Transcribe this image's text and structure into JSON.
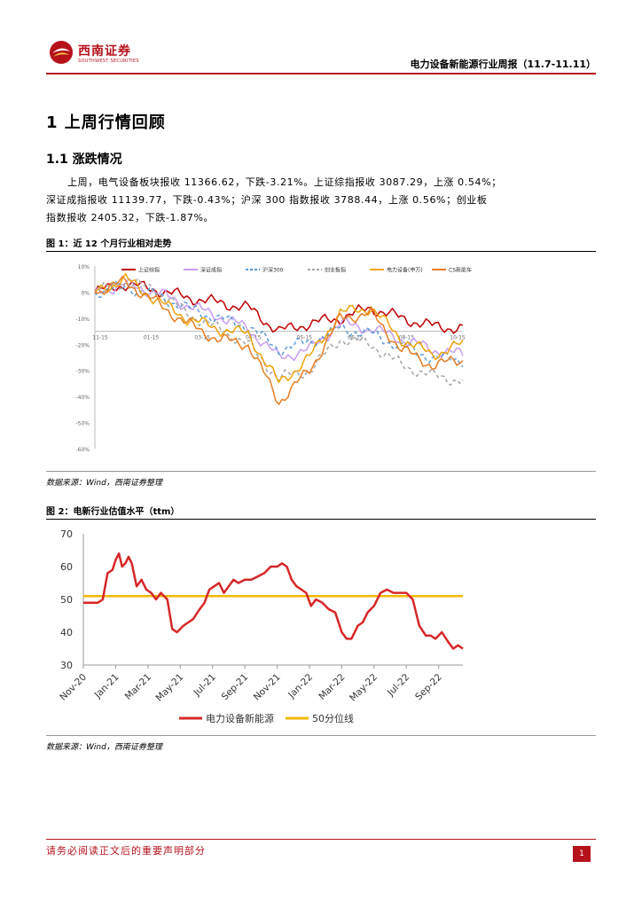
{
  "header": {
    "logo_cn": "西南证券",
    "logo_en": "SOUTHWEST SECURITIES",
    "report_title": "电力设备新能源行业周报（11.7-11.11）",
    "brand_color": "#b5121b"
  },
  "section": {
    "h1": "1  上周行情回顾",
    "h2": "1.1 涨跌情况",
    "paragraph_lines": [
      "上周，电气设备板块报收 11366.62，下跌-3.21%。上证综指报收 3087.29，上涨 0.54%；",
      "深证成指报收 11139.77，下跌-0.43%；沪深 300 指数报收 3788.44，上涨 0.56%；创业板",
      "指数报收 2405.32，下跌-1.87%。"
    ]
  },
  "figure1": {
    "title": "图 1：近 12 个月行业相对走势",
    "source": "数据来源：Wind，西南证券整理"
  },
  "figure2": {
    "title": "图 2：电新行业估值水平（ttm）",
    "source": "数据来源：Wind，西南证券整理"
  },
  "footer": {
    "disclaimer": "请务必阅读正文后的重要声明部分",
    "page_number": "1"
  },
  "chart_data": [
    {
      "type": "line",
      "title": "近 12 个月行业相对走势",
      "ylim": [
        -60,
        10
      ],
      "y_ticks": [
        "10%",
        "0%",
        "-10%",
        "-20%",
        "-30%",
        "-40%",
        "-50%",
        "-60%"
      ],
      "x_ticks": [
        "11-15",
        "01-15",
        "03-15",
        "04-15",
        "05-15",
        "06-15",
        "08-15",
        "10-15"
      ],
      "legend": [
        "上证综指",
        "深证成指",
        "沪深300",
        "创业板指",
        "电力设备(申万)",
        "CS新能车"
      ],
      "colors": [
        "#c00000",
        "#c79cf2",
        "#5b9bd5",
        "#a6a6a6",
        "#f0a30a",
        "#e67e22"
      ],
      "dashed": [
        false,
        false,
        true,
        true,
        false,
        false
      ],
      "x": [
        0,
        1,
        2,
        3,
        4,
        5,
        6,
        7,
        8,
        9,
        10,
        11,
        12
      ],
      "series": [
        {
          "name": "上证综指",
          "values": [
            0,
            3,
            1,
            -2,
            -4,
            -6,
            -15,
            -12,
            -10,
            -6,
            -10,
            -13,
            -14
          ]
        },
        {
          "name": "深证成指",
          "values": [
            0,
            3,
            0,
            -5,
            -9,
            -14,
            -25,
            -22,
            -12,
            -14,
            -18,
            -22,
            -24
          ]
        },
        {
          "name": "沪深300",
          "values": [
            0,
            2,
            -1,
            -6,
            -10,
            -13,
            -22,
            -19,
            -14,
            -16,
            -21,
            -25,
            -26
          ]
        },
        {
          "name": "创业板指",
          "values": [
            0,
            4,
            1,
            -8,
            -14,
            -20,
            -33,
            -30,
            -18,
            -20,
            -28,
            -32,
            -34
          ]
        },
        {
          "name": "电力设备(申万)",
          "values": [
            0,
            5,
            -3,
            -10,
            -14,
            -16,
            -35,
            -25,
            -8,
            -6,
            -18,
            -24,
            -20
          ]
        },
        {
          "name": "CS新能车",
          "values": [
            0,
            4,
            -4,
            -12,
            -18,
            -20,
            -42,
            -30,
            -10,
            -8,
            -22,
            -28,
            -26
          ]
        }
      ]
    },
    {
      "type": "line",
      "title": "电新行业估值水平（ttm）",
      "ylim": [
        30,
        70
      ],
      "y_ticks": [
        "70",
        "60",
        "50",
        "40",
        "30"
      ],
      "x_ticks": [
        "Nov-20",
        "Jan-21",
        "Mar-21",
        "May-21",
        "Jul-21",
        "Sep-21",
        "Nov-21",
        "Jan-22",
        "Mar-22",
        "May-22",
        "Jul-22",
        "Sep-22"
      ],
      "x_month_index": [
        0,
        2,
        4,
        6,
        8,
        10,
        12,
        14,
        16,
        18,
        20,
        22
      ],
      "legend": [
        "电力设备新能源",
        "50分位线"
      ],
      "colors": [
        "#d62728",
        "#f5b800"
      ],
      "series": [
        {
          "name": "电力设备新能源",
          "x": [
            0,
            0.5,
            0.9,
            1.2,
            1.5,
            1.8,
            2.0,
            2.2,
            2.4,
            2.6,
            2.8,
            3.0,
            3.3,
            3.6,
            3.9,
            4.2,
            4.5,
            4.8,
            5.2,
            5.5,
            5.8,
            6.0,
            6.2,
            6.5,
            6.8,
            7.2,
            7.5,
            7.8,
            8.1,
            8.4,
            8.7,
            9.0,
            9.3,
            9.6,
            10.0,
            10.4,
            10.8,
            11.2,
            11.6,
            12.0,
            12.3,
            12.6,
            12.9,
            13.2,
            13.5,
            13.8,
            14.1,
            14.4,
            14.8,
            15.2,
            15.6,
            16.0,
            16.3,
            16.6,
            17.0,
            17.3,
            17.6,
            18.0,
            18.4,
            18.8,
            19.2,
            19.6,
            20.0,
            20.4,
            20.8,
            21.2,
            21.5,
            21.8,
            22.2,
            22.6,
            22.9,
            23.2,
            23.5
          ],
          "values": [
            49,
            49,
            49,
            50,
            58,
            59,
            62,
            64,
            60,
            61,
            63,
            61,
            54,
            56,
            53,
            52,
            50,
            52,
            50,
            41,
            40,
            41,
            42,
            43,
            44,
            47,
            49,
            53,
            54,
            55,
            52,
            54,
            56,
            55,
            56,
            56,
            57,
            58,
            60,
            60,
            61,
            60,
            56,
            54,
            53,
            52,
            48,
            50,
            49,
            47,
            46,
            40,
            38,
            38,
            42,
            43,
            46,
            48,
            52,
            53,
            52,
            52,
            52,
            50,
            42,
            39,
            39,
            38,
            40,
            37,
            35,
            36,
            35
          ]
        },
        {
          "name": "50分位线",
          "x": [
            0,
            23.5
          ],
          "values": [
            51,
            51
          ]
        }
      ]
    }
  ]
}
